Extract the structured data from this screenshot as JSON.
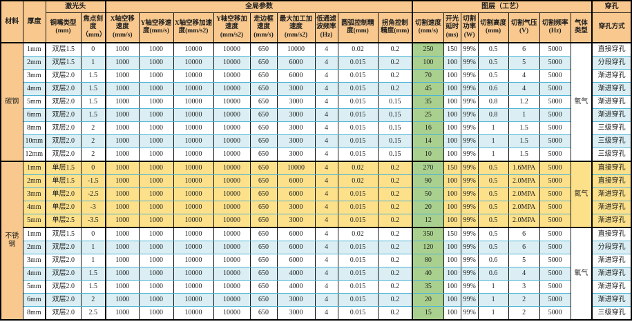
{
  "table": {
    "colors": {
      "header_bg": "#F8C88E",
      "row_alt_blue": "#DAEEF3",
      "row_yellow": "#FCE08A",
      "cut_speed_green": "#A9D08E",
      "grid_teal": "#4FB5D5",
      "grid_black": "#000000"
    },
    "top_headers": [
      {
        "label": "材料"
      },
      {
        "label": "厚度"
      },
      {
        "label": "激光头"
      },
      {
        "label": "全局参数"
      },
      {
        "label": "图层（工艺）"
      },
      {
        "label": "穿孔"
      }
    ],
    "sub_headers": [
      "铜嘴类型(mm)",
      "焦点刻度（mm）",
      "X轴空移速度(mm/s)",
      "Y轴空移速度(mm/s)",
      "X轴空移加速度(mm/s2)",
      "Y轴空移加速度(mm/s2)",
      "走边框速度(mm/s)",
      "最大加工加速度(mm/s2)",
      "低通滤波频率(Hz)",
      "圆弧控制精度(mm)",
      "拐角控制精度(mm)",
      "切割速度(mm/s)",
      "开光延时(ms)",
      "切割功率(W)",
      "切割高度(mm)",
      "切割气压(V)",
      "切割频率(Hz)",
      "气体类型",
      "穿孔方式"
    ],
    "column_keys": [
      "thickness",
      "nozzle-type",
      "focus-scale",
      "x-idle-speed",
      "y-idle-speed",
      "x-idle-acc",
      "y-idle-acc",
      "frame-speed",
      "max-work-acc",
      "lowpass-freq",
      "arc-precision",
      "corner-precision",
      "cut-speed",
      "laser-on-delay",
      "cut-power",
      "cut-height",
      "cut-pressure",
      "cut-freq",
      "pierce-mode"
    ],
    "sections": [
      {
        "material": "碳钢",
        "gas_groups": [
          {
            "gas": "氧气",
            "gas_style": "white",
            "rows": [
              {
                "style": "white",
                "values": [
                  "1mm",
                  "双层1.5",
                  "0",
                  "1000",
                  "1000",
                  "10000",
                  "10000",
                  "650",
                  "10000",
                  "4",
                  "0.02",
                  "0.2",
                  "250",
                  "150",
                  "99%",
                  "0.5",
                  "6",
                  "5000",
                  "直接穿孔"
                ]
              },
              {
                "style": "blue",
                "values": [
                  "2mm",
                  "双层1.5",
                  "1",
                  "1000",
                  "1000",
                  "10000",
                  "10000",
                  "650",
                  "6000",
                  "4",
                  "0.015",
                  "0.2",
                  "100",
                  "100",
                  "99%",
                  "0.5",
                  "5",
                  "5000",
                  "分段穿孔"
                ]
              },
              {
                "style": "white",
                "values": [
                  "3mm",
                  "双层2.0",
                  "1.5",
                  "1000",
                  "1000",
                  "10000",
                  "10000",
                  "650",
                  "6000",
                  "4",
                  "0.015",
                  "0.2",
                  "70",
                  "100",
                  "99%",
                  "0.5",
                  "4",
                  "5000",
                  "渐进穿孔"
                ]
              },
              {
                "style": "blue",
                "values": [
                  "4mm",
                  "双层2.0",
                  "1.5",
                  "1000",
                  "1000",
                  "10000",
                  "10000",
                  "650",
                  "3000",
                  "4",
                  "0.015",
                  "0.2",
                  "45",
                  "100",
                  "99%",
                  "0.6",
                  "4",
                  "5000",
                  "渐进穿孔"
                ]
              },
              {
                "style": "white",
                "values": [
                  "5mm",
                  "双层2.0",
                  "1.5",
                  "1000",
                  "1000",
                  "10000",
                  "10000",
                  "650",
                  "3000",
                  "4",
                  "0.015",
                  "0.15",
                  "35",
                  "100",
                  "99%",
                  "0.8",
                  "1.2",
                  "5000",
                  "渐进穿孔"
                ]
              },
              {
                "style": "blue",
                "values": [
                  "6mm",
                  "双层2.0",
                  "1.5",
                  "1000",
                  "1000",
                  "10000",
                  "10000",
                  "650",
                  "3000",
                  "4",
                  "0.015",
                  "0.15",
                  "25",
                  "100",
                  "99%",
                  "0.8",
                  "1",
                  "5000",
                  "渐进穿孔"
                ]
              },
              {
                "style": "white",
                "values": [
                  "8mm",
                  "双层2.0",
                  "2",
                  "1000",
                  "1000",
                  "10000",
                  "10000",
                  "650",
                  "3000",
                  "4",
                  "0.015",
                  "0.15",
                  "16",
                  "100",
                  "99%",
                  "1",
                  "1.5",
                  "5000",
                  "三级穿孔"
                ]
              },
              {
                "style": "blue",
                "values": [
                  "10mm",
                  "双层2.0",
                  "2",
                  "1000",
                  "1000",
                  "10000",
                  "10000",
                  "650",
                  "3000",
                  "4",
                  "0.015",
                  "0.15",
                  "14",
                  "100",
                  "99%",
                  "1",
                  "1.5",
                  "5000",
                  "三级穿孔"
                ]
              },
              {
                "style": "white",
                "values": [
                  "12mm",
                  "双层2.0",
                  "2",
                  "1000",
                  "1000",
                  "10000",
                  "10000",
                  "650",
                  "3000",
                  "4",
                  "0.015",
                  "0.15",
                  "10",
                  "100",
                  "99%",
                  "1",
                  "1.5",
                  "5000",
                  "三级穿孔"
                ]
              }
            ]
          }
        ]
      },
      {
        "material": "不锈钢",
        "gas_groups": [
          {
            "gas": "氮气",
            "gas_style": "yellow",
            "rows": [
              {
                "style": "yellow",
                "values": [
                  "1mm",
                  "单层1.5",
                  "0",
                  "1000",
                  "1000",
                  "10000",
                  "10000",
                  "650",
                  "10000",
                  "4",
                  "0.02",
                  "0.2",
                  "270",
                  "150",
                  "99%",
                  "0.5",
                  "1.6MPA",
                  "5000",
                  "直接穿孔"
                ]
              },
              {
                "style": "yellow",
                "values": [
                  "2mm",
                  "单层1.5",
                  "-1.5",
                  "1000",
                  "1000",
                  "10000",
                  "10000",
                  "650",
                  "6000",
                  "4",
                  "0.02",
                  "0.2",
                  "90",
                  "100",
                  "99%",
                  "0.5",
                  "2.0MPA",
                  "5000",
                  "直接穿孔"
                ]
              },
              {
                "style": "yellow",
                "values": [
                  "3mm",
                  "单层2.0",
                  "-2.5",
                  "1000",
                  "1000",
                  "10000",
                  "10000",
                  "650",
                  "6000",
                  "4",
                  "0.015",
                  "0.2",
                  "50",
                  "100",
                  "99%",
                  "0.5",
                  "2.0MPA",
                  "5000",
                  "渐进穿孔"
                ]
              },
              {
                "style": "yellow",
                "values": [
                  "4mm",
                  "单层2.0",
                  "-3",
                  "1000",
                  "1000",
                  "10000",
                  "10000",
                  "650",
                  "3000",
                  "4",
                  "0.015",
                  "0.2",
                  "20",
                  "100",
                  "99%",
                  "0.5",
                  "2.0MPA",
                  "5000",
                  "渐进穿孔"
                ]
              },
              {
                "style": "yellow",
                "values": [
                  "5mm",
                  "单层2.5",
                  "-3.5",
                  "1000",
                  "1000",
                  "10000",
                  "10000",
                  "650",
                  "3000",
                  "4",
                  "0.015",
                  "0.2",
                  "12",
                  "100",
                  "99%",
                  "0.5",
                  "2.0MPA",
                  "5000",
                  "渐进穿孔"
                ]
              }
            ]
          },
          {
            "gas": "氧气",
            "gas_style": "white",
            "rows": [
              {
                "style": "white",
                "values": [
                  "1mm",
                  "双层1.5",
                  "0",
                  "1000",
                  "1000",
                  "10000",
                  "10000",
                  "650",
                  "6000",
                  "4",
                  "0.02",
                  "0.2",
                  "350",
                  "150",
                  "99%",
                  "0.5",
                  "6",
                  "5000",
                  "直接穿孔"
                ]
              },
              {
                "style": "blue",
                "values": [
                  "2mm",
                  "双层2.0",
                  "1",
                  "1000",
                  "1000",
                  "10000",
                  "10000",
                  "650",
                  "6000",
                  "4",
                  "0.015",
                  "0.2",
                  "120",
                  "100",
                  "99%",
                  "0.5",
                  "6",
                  "5000",
                  "分段穿孔"
                ]
              },
              {
                "style": "white",
                "values": [
                  "3mm",
                  "双层2.0",
                  "1",
                  "1000",
                  "1000",
                  "10000",
                  "10000",
                  "650",
                  "6000",
                  "4",
                  "0.015",
                  "0.2",
                  "80",
                  "100",
                  "99%",
                  "0.6",
                  "5",
                  "5000",
                  "渐进穿孔"
                ]
              },
              {
                "style": "blue",
                "values": [
                  "4mm",
                  "双层2.0",
                  "1.5",
                  "1000",
                  "1000",
                  "10000",
                  "10000",
                  "650",
                  "4000",
                  "4",
                  "0.015",
                  "0.2",
                  "40",
                  "100",
                  "99%",
                  "0.6",
                  "4",
                  "5000",
                  "渐进穿孔"
                ]
              },
              {
                "style": "white",
                "values": [
                  "5mm",
                  "双层2.0",
                  "1.5",
                  "1000",
                  "1000",
                  "10000",
                  "10000",
                  "650",
                  "4000",
                  "4",
                  "0.015",
                  "0.2",
                  "35",
                  "100",
                  "99%",
                  "1",
                  "3",
                  "5000",
                  "渐进穿孔"
                ]
              },
              {
                "style": "blue",
                "values": [
                  "6mm",
                  "双层2.0",
                  "2",
                  "1000",
                  "1000",
                  "10000",
                  "10000",
                  "650",
                  "3000",
                  "4",
                  "0.015",
                  "0.2",
                  "20",
                  "100",
                  "99%",
                  "1",
                  "2",
                  "5000",
                  "渐进穿孔"
                ]
              },
              {
                "style": "white",
                "values": [
                  "8mm",
                  "双层2.0",
                  "2.5",
                  "1000",
                  "1000",
                  "10000",
                  "10000",
                  "650",
                  "3000",
                  "4",
                  "0.015",
                  "0.2",
                  "15",
                  "100",
                  "99%",
                  "1",
                  "2",
                  "5000",
                  "三级穿孔"
                ]
              }
            ]
          }
        ]
      }
    ]
  }
}
